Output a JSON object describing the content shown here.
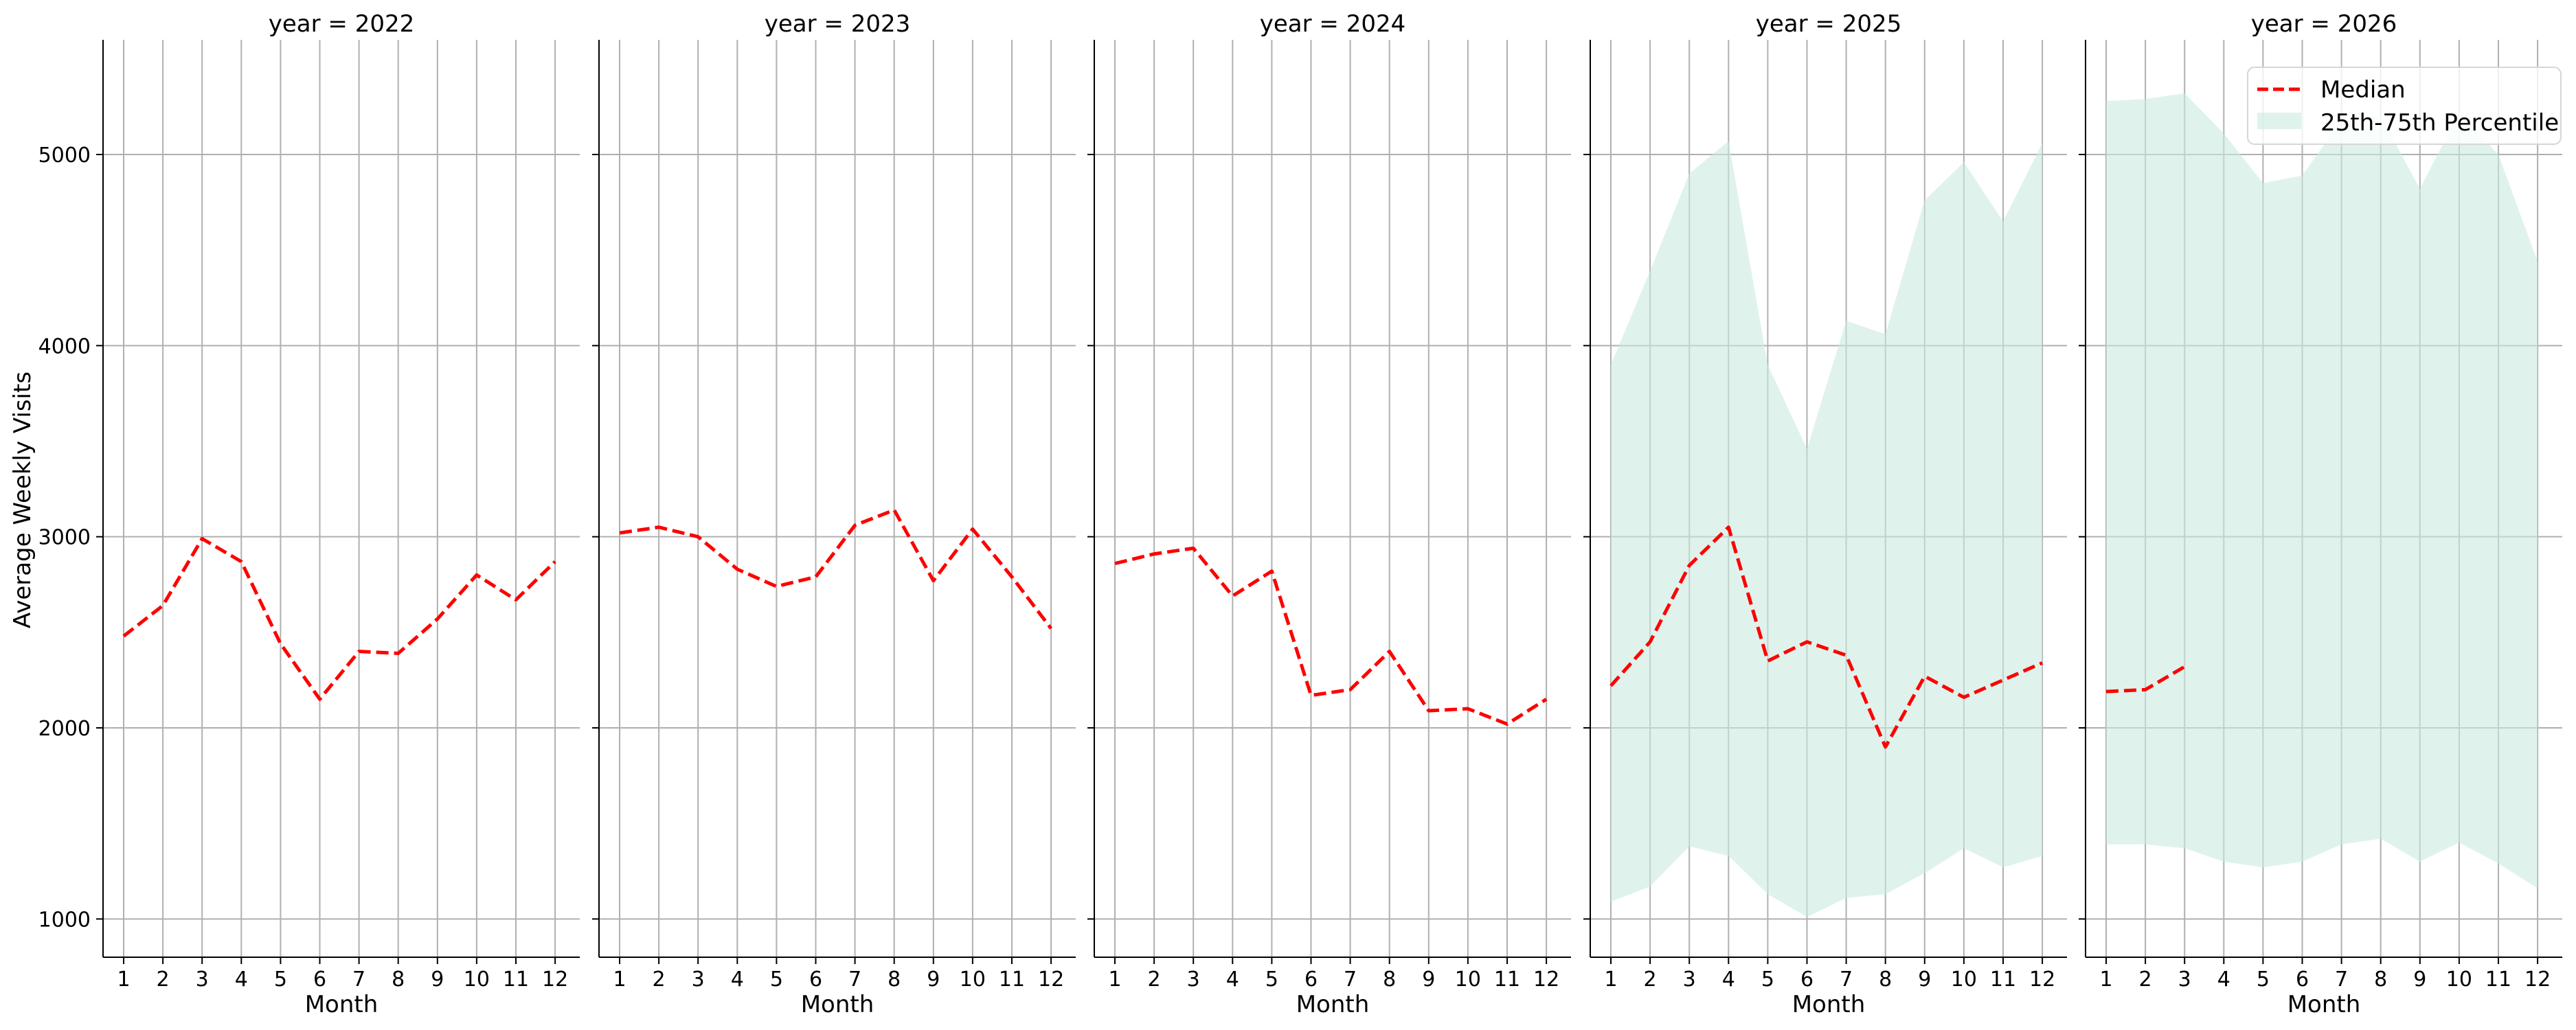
{
  "figure": {
    "ylabel": "Average Weekly Visits",
    "xlabel": "Month",
    "legend": {
      "median_label": "Median",
      "band_label": "25th-75th Percentile",
      "placement": "top-right of last panel"
    },
    "colors": {
      "median": "#ff0000",
      "band": "#c9ebe0",
      "grid": "#b0b0b0",
      "axis": "#000000"
    }
  },
  "chart_data": {
    "type": "line",
    "facet_by": "year",
    "x": [
      1,
      2,
      3,
      4,
      5,
      6,
      7,
      8,
      9,
      10,
      11,
      12
    ],
    "x_ticks": [
      "1",
      "2",
      "3",
      "4",
      "5",
      "6",
      "7",
      "8",
      "9",
      "10",
      "11",
      "12"
    ],
    "ylim": [
      800,
      5600
    ],
    "y_ticks": [
      1000,
      2000,
      3000,
      4000,
      5000
    ],
    "grid": true,
    "panels": [
      {
        "title": "year = 2022",
        "median": [
          2480,
          2640,
          2990,
          2870,
          2440,
          2150,
          2400,
          2390,
          2570,
          2800,
          2670,
          2870
        ],
        "p25": null,
        "p75": null
      },
      {
        "title": "year = 2023",
        "median": [
          3020,
          3050,
          3000,
          2830,
          2740,
          2790,
          3060,
          3140,
          2770,
          3040,
          2790,
          2520
        ],
        "p25": null,
        "p75": null
      },
      {
        "title": "year = 2024",
        "median": [
          2860,
          2910,
          2940,
          2690,
          2820,
          2170,
          2200,
          2400,
          2090,
          2100,
          2020,
          2150
        ],
        "p25": null,
        "p75": null
      },
      {
        "title": "year = 2025",
        "median": [
          2220,
          2450,
          2850,
          3050,
          2350,
          2450,
          2380,
          1900,
          2270,
          2160,
          2250,
          2340
        ],
        "p25": [
          1090,
          1170,
          1380,
          1330,
          1130,
          1010,
          1110,
          1130,
          1240,
          1370,
          1270,
          1330
        ],
        "p75": [
          3900,
          4390,
          4900,
          5070,
          3900,
          3460,
          4130,
          4060,
          4760,
          4960,
          4650,
          5060
        ]
      },
      {
        "title": "year = 2026",
        "median": [
          2190,
          2200,
          2320,
          null,
          null,
          null,
          null,
          null,
          null,
          null,
          null,
          null
        ],
        "p25": [
          1390,
          1390,
          1370,
          1300,
          1270,
          1300,
          1390,
          1420,
          1300,
          1400,
          1290,
          1160
        ],
        "p75": [
          5280,
          5290,
          5320,
          5110,
          4850,
          4890,
          5180,
          5200,
          4820,
          5220,
          5000,
          4440
        ]
      }
    ]
  }
}
